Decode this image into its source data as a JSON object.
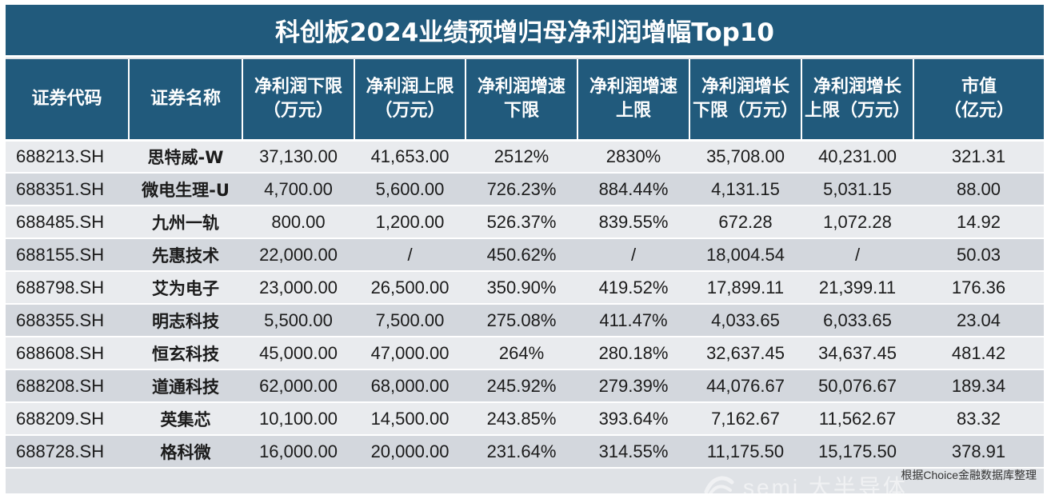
{
  "title": "科创板2024业绩预增归母净利润增幅Top10",
  "headers": [
    [
      "证券代码"
    ],
    [
      "证券名称"
    ],
    [
      "净利润下限",
      "（万元）"
    ],
    [
      "净利润上限",
      "（万元）"
    ],
    [
      "净利润增速",
      "下限"
    ],
    [
      "净利润增速",
      "上限"
    ],
    [
      "净利润增长",
      "下限（万元）"
    ],
    [
      "净利润增长",
      "上限（万元）"
    ],
    [
      "市值",
      "（亿元）"
    ]
  ],
  "rows": [
    [
      "688213.SH",
      "思特威-W",
      "37,130.00",
      "41,653.00",
      "2512%",
      "2830%",
      "35,708.00",
      "40,231.00",
      "321.31"
    ],
    [
      "688351.SH",
      "微电生理-U",
      "4,700.00",
      "5,600.00",
      "726.23%",
      "884.44%",
      "4,131.15",
      "5,031.15",
      "88.00"
    ],
    [
      "688485.SH",
      "九州一轨",
      "800.00",
      "1,200.00",
      "526.37%",
      "839.55%",
      "672.28",
      "1,072.28",
      "14.92"
    ],
    [
      "688155.SH",
      "先惠技术",
      "22,000.00",
      "/",
      "450.62%",
      "/",
      "18,004.54",
      "/",
      "50.03"
    ],
    [
      "688798.SH",
      "艾为电子",
      "23,000.00",
      "26,500.00",
      "350.90%",
      "419.52%",
      "17,899.11",
      "21,399.11",
      "176.36"
    ],
    [
      "688355.SH",
      "明志科技",
      "5,500.00",
      "7,500.00",
      "275.08%",
      "411.47%",
      "4,033.65",
      "6,033.65",
      "23.04"
    ],
    [
      "688608.SH",
      "恒玄科技",
      "45,000.00",
      "47,000.00",
      "264%",
      "280.18%",
      "32,637.45",
      "34,637.45",
      "481.42"
    ],
    [
      "688208.SH",
      "道通科技",
      "62,000.00",
      "68,000.00",
      "245.92%",
      "279.39%",
      "44,076.67",
      "50,076.67",
      "189.34"
    ],
    [
      "688209.SH",
      "英集芯",
      "10,100.00",
      "14,500.00",
      "243.85%",
      "393.64%",
      "7,162.67",
      "11,562.67",
      "83.32"
    ],
    [
      "688728.SH",
      "格科微",
      "16,000.00",
      "20,000.00",
      "231.64%",
      "314.55%",
      "11,175.50",
      "15,175.50",
      "378.91"
    ]
  ],
  "source": "根据Choice金融数据库整理",
  "watermark": {
    "text": "semi 大半导体",
    "icon": "semi-logo-icon"
  },
  "colors": {
    "header_bg": "#215a7c",
    "row_light": "#e9ebee",
    "row_dark": "#d3d7dd",
    "sheet_bg": "#dfe2e6"
  }
}
